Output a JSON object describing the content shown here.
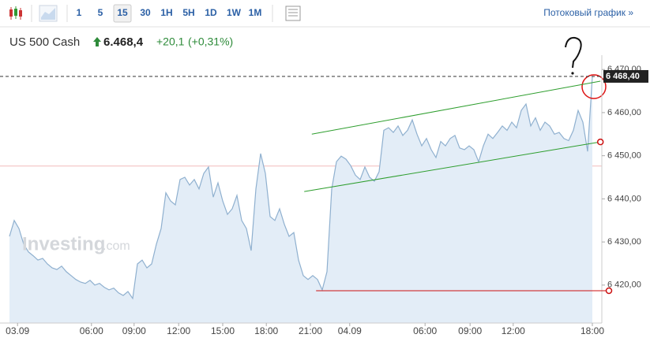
{
  "toolbar": {
    "intervals": [
      "1",
      "5",
      "15",
      "30",
      "1H",
      "5H",
      "1D",
      "1W",
      "1M"
    ],
    "selected": "15",
    "streaming_link": "Потоковый график »"
  },
  "header": {
    "instrument": "US 500 Cash",
    "price": "6.468,4",
    "change": "+20,1",
    "change_percent": "(+0,31%)"
  },
  "watermark": {
    "brand": "Investing",
    "suffix": ".com"
  },
  "chart_data": {
    "type": "area",
    "color": "#8fb0cf",
    "fill": "#e3edf7",
    "series": [
      {
        "values": [
          6431.3,
          6435.0,
          6433.1,
          6429.5,
          6427.7,
          6426.8,
          6425.8,
          6426.2,
          6424.9,
          6424.0,
          6423.6,
          6424.4,
          6423.1,
          6422.2,
          6421.3,
          6420.7,
          6420.4,
          6421.1,
          6420.0,
          6420.4,
          6419.5,
          6418.9,
          6419.3,
          6418.2,
          6417.6,
          6418.5,
          6416.9,
          6424.9,
          6425.8,
          6424.0,
          6424.9,
          6429.5,
          6433.1,
          6441.4,
          6439.5,
          6438.6,
          6444.5,
          6445.0,
          6443.2,
          6444.5,
          6442.3,
          6445.9,
          6447.4,
          6440.4,
          6443.7,
          6439.5,
          6436.4,
          6437.7,
          6440.8,
          6435.0,
          6433.1,
          6428.0,
          6442.3,
          6450.5,
          6445.9,
          6435.9,
          6435.0,
          6437.7,
          6434.1,
          6431.3,
          6432.2,
          6425.8,
          6422.2,
          6421.3,
          6422.2,
          6421.3,
          6418.9,
          6423.1,
          6442.3,
          6448.6,
          6449.9,
          6449.2,
          6447.7,
          6445.5,
          6444.5,
          6447.4,
          6445.0,
          6444.1,
          6446.3,
          6455.9,
          6456.5,
          6455.4,
          6456.9,
          6454.7,
          6455.9,
          6458.3,
          6455.0,
          6452.3,
          6454.0,
          6451.4,
          6449.6,
          6453.3,
          6452.3,
          6454.0,
          6454.7,
          6451.8,
          6451.4,
          6452.3,
          6451.4,
          6448.6,
          6452.3,
          6455.0,
          6454.0,
          6455.4,
          6456.9,
          6455.9,
          6457.8,
          6456.5,
          6460.5,
          6462.0,
          6456.9,
          6458.8,
          6455.9,
          6457.8,
          6456.9,
          6455.0,
          6455.4,
          6454.0,
          6453.5,
          6455.9,
          6460.5,
          6457.8,
          6451.0,
          6468.4
        ]
      }
    ],
    "xlim": [
      0,
      123
    ],
    "xticks": [
      {
        "value": 1.7,
        "label": "03.09"
      },
      {
        "value": 17.3,
        "label": "06:00"
      },
      {
        "value": 26.3,
        "label": "09:00"
      },
      {
        "value": 35.7,
        "label": "12:00"
      },
      {
        "value": 45,
        "label": "15:00"
      },
      {
        "value": 54.2,
        "label": "18:00"
      },
      {
        "value": 63.5,
        "label": "21:00"
      },
      {
        "value": 71.8,
        "label": "04.09"
      },
      {
        "value": 87.7,
        "label": "06:00"
      },
      {
        "value": 97.2,
        "label": "09:00"
      },
      {
        "value": 106.3,
        "label": "12:00"
      },
      {
        "value": 123,
        "label": "18:00"
      }
    ],
    "ylim": [
      6411.2,
      6471.5
    ],
    "yticks": [
      {
        "value": 6420,
        "label": "6 420,00"
      },
      {
        "value": 6430,
        "label": "6 430,00"
      },
      {
        "value": 6440,
        "label": "6 440,00"
      },
      {
        "value": 6450,
        "label": "6 450,00"
      },
      {
        "value": 6460,
        "label": "6 460,00"
      },
      {
        "value": 6470,
        "label": "6 470,00"
      }
    ],
    "price_tag": {
      "value": 6468.4,
      "label": "6 468,40"
    },
    "level_lines": [
      {
        "y": 6447.6,
        "color": "#f2bcbc"
      }
    ],
    "trendlines": [
      {
        "color": "#2e9e2e",
        "x": [
          63.8,
          124.7
        ],
        "y": [
          6455.0,
          6467.3
        ]
      },
      {
        "color": "#2e9e2e",
        "x": [
          62.2,
          124.7
        ],
        "y": [
          6441.7,
          6453.2
        ]
      },
      {
        "color": "#cc1111",
        "x": [
          64.7,
          126.5
        ],
        "y": [
          6418.7,
          6418.7
        ]
      }
    ]
  }
}
